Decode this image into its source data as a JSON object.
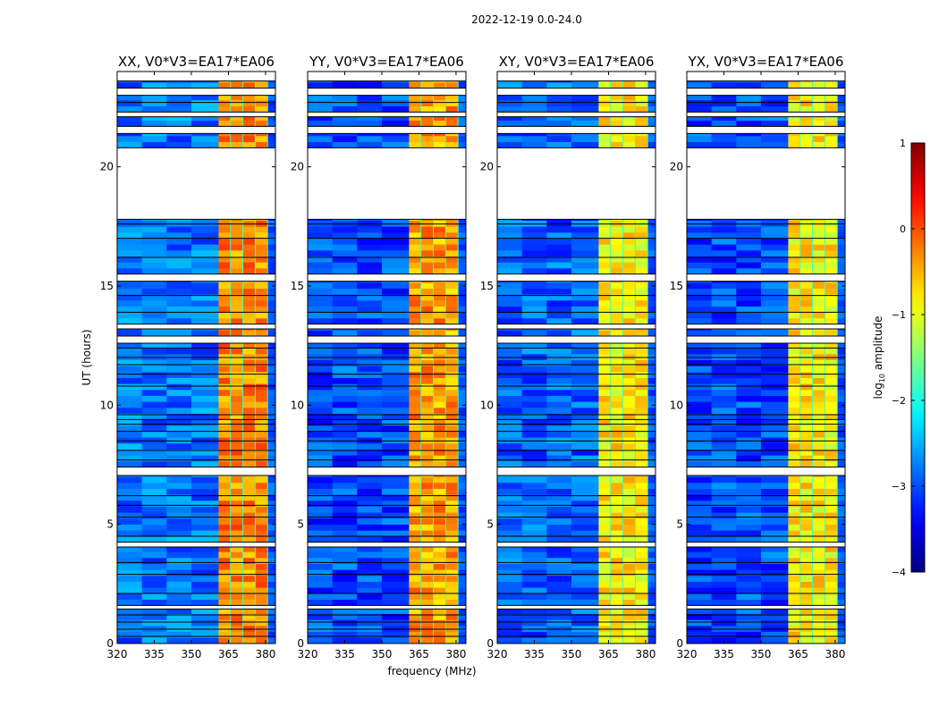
{
  "chart_data": {
    "type": "heatmap",
    "suptitle": "2022-12-19 0.0-24.0",
    "xlabel": "frequency (MHz)",
    "ylabel": "UT (hours)",
    "xlim": [
      320,
      384
    ],
    "ylim": [
      0,
      24
    ],
    "xticks": [
      320,
      335,
      350,
      365,
      380
    ],
    "yticks": [
      0,
      5,
      10,
      15,
      20
    ],
    "panels": [
      {
        "title": "XX, V0*V3=EA17*EA06",
        "band_level": -0.3,
        "background_level": -2.8
      },
      {
        "title": "YY, V0*V3=EA17*EA06",
        "band_level": -0.4,
        "background_level": -3.0
      },
      {
        "title": "XY, V0*V3=EA17*EA06",
        "band_level": -0.8,
        "background_level": -2.9
      },
      {
        "title": "YX, V0*V3=EA17*EA06",
        "band_level": -0.8,
        "background_level": -3.0
      }
    ],
    "data_segments_hours": [
      [
        0,
        1.45
      ],
      [
        1.6,
        4.05
      ],
      [
        4.25,
        7.05
      ],
      [
        7.4,
        12.6
      ],
      [
        12.9,
        13.2
      ],
      [
        13.4,
        15.2
      ],
      [
        15.5,
        17.8
      ],
      [
        20.8,
        21.4
      ],
      [
        21.7,
        22.1
      ],
      [
        22.3,
        23.0
      ],
      [
        23.3,
        23.6
      ]
    ],
    "flag_lines_hours": [
      0.3,
      0.6,
      0.9,
      1.2,
      2.1,
      2.9,
      3.4,
      4.5,
      5.3,
      5.8,
      6.2,
      7.7,
      8.1,
      8.5,
      8.9,
      9.2,
      9.4,
      9.6,
      10.8,
      11.3,
      11.7,
      12.0,
      12.4,
      13.9,
      14.6,
      16.2,
      17.0,
      17.6,
      22.7
    ],
    "subbands_mhz": [
      [
        361,
        366
      ],
      [
        366,
        371
      ],
      [
        371,
        376
      ],
      [
        376,
        381
      ]
    ],
    "colorbar": {
      "label": "log10 amplitude",
      "label_main": "log",
      "label_sub": "10",
      "label_rest": " amplitude",
      "range": [
        -4,
        1
      ],
      "ticks": [
        "1",
        "0",
        "−1",
        "−2",
        "−3",
        "−4"
      ],
      "tick_values": [
        1,
        0,
        -1,
        -2,
        -3,
        -4
      ],
      "colormap": "jet"
    }
  }
}
